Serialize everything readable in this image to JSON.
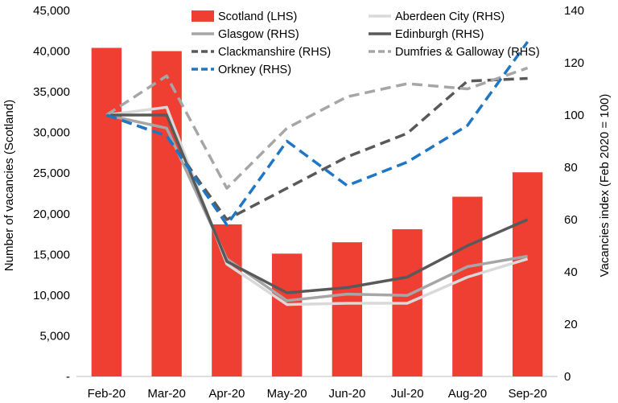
{
  "chart_data": {
    "type": "bar",
    "categories": [
      "Feb-20",
      "Mar-20",
      "Apr-20",
      "May-20",
      "Jun-20",
      "Jul-20",
      "Aug-20",
      "Sep-20"
    ],
    "ylabel": "Number of vacancies (Scotland)",
    "ylabel_right": "Vacancies index (Feb 2020 = 100)",
    "ylim": [
      0,
      45000
    ],
    "ylim_right": [
      0,
      140
    ],
    "yticks": [
      "-",
      "5,000",
      "10,000",
      "15,000",
      "20,000",
      "25,000",
      "30,000",
      "35,000",
      "40,000",
      "45,000"
    ],
    "yticks_right": [
      "0",
      "20",
      "40",
      "60",
      "80",
      "100",
      "120",
      "140"
    ],
    "legend_position": "top",
    "series": [
      {
        "name": "Scotland (LHS)",
        "kind": "bar",
        "axis": "left",
        "color": "#ef3e32",
        "values": [
          40400,
          40000,
          18700,
          15100,
          16500,
          18100,
          22100,
          25100
        ]
      },
      {
        "name": "Aberdeen City (RHS)",
        "kind": "line",
        "axis": "right",
        "color": "#d9d9d9",
        "dash": "solid",
        "values": [
          100,
          103,
          43,
          27.5,
          28,
          28,
          38,
          45
        ]
      },
      {
        "name": "Glasgow (RHS)",
        "kind": "line",
        "axis": "right",
        "color": "#a6a6a6",
        "dash": "solid",
        "values": [
          100,
          95,
          45,
          29,
          31.5,
          31,
          42,
          46
        ]
      },
      {
        "name": "Edinburgh (RHS)",
        "kind": "line",
        "axis": "right",
        "color": "#595959",
        "dash": "solid",
        "values": [
          100,
          100,
          44,
          32,
          34,
          38,
          50,
          60
        ]
      },
      {
        "name": "Clackmanshire (RHS)",
        "kind": "line",
        "axis": "right",
        "color": "#595959",
        "dash": "dashed",
        "values": [
          100,
          92,
          60,
          72,
          84,
          93,
          113,
          114
        ]
      },
      {
        "name": "Dumfries & Galloway (RHS)",
        "kind": "line",
        "axis": "right",
        "color": "#a6a6a6",
        "dash": "dashed",
        "values": [
          100,
          115,
          72,
          95,
          107,
          112,
          110,
          118
        ]
      },
      {
        "name": "Orkney (RHS)",
        "kind": "line",
        "axis": "right",
        "color": "#1f77c4",
        "dash": "dashed",
        "values": [
          100,
          92,
          58,
          90,
          73,
          82,
          96,
          128
        ]
      }
    ]
  }
}
